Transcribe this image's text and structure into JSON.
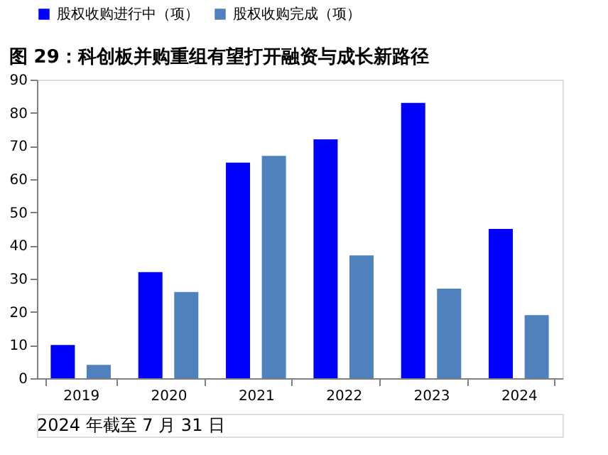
{
  "chart_data": {
    "type": "bar",
    "title": "图 29：科创板并购重组有望打开融资与成长新路径",
    "annotations": [
      "2024 年截至 7 月 31 日"
    ],
    "categories": [
      "2019",
      "2020",
      "2021",
      "2022",
      "2023",
      "2024"
    ],
    "series": [
      {
        "name": "股权收购进行中（项）",
        "color": "#0000ff",
        "values": [
          10,
          32,
          65,
          72,
          83,
          45
        ]
      },
      {
        "name": "股权收购完成（项）",
        "color": "#4f81bd",
        "values": [
          4,
          26,
          67,
          37,
          27,
          19
        ]
      }
    ],
    "ylim": [
      0,
      90
    ],
    "yticks": [
      0,
      10,
      20,
      30,
      40,
      50,
      60,
      70,
      80,
      90
    ],
    "grid": false,
    "legend": "top"
  }
}
